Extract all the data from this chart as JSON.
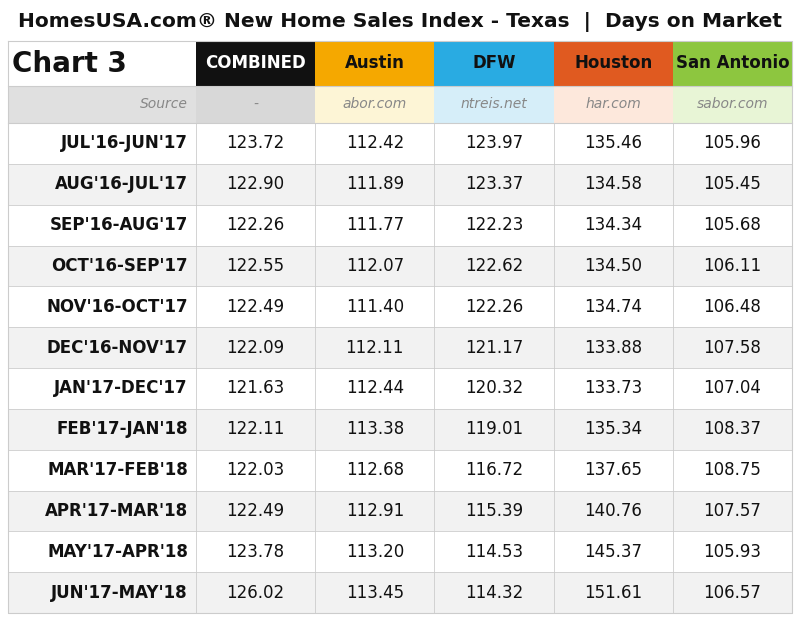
{
  "title": "HomesUSA.com® New Home Sales Index - Texas  |  Days on Market",
  "chart_label": "Chart 3",
  "columns": [
    "COMBINED",
    "Austin",
    "DFW",
    "Houston",
    "San Antonio"
  ],
  "sources": [
    "-",
    "abor.com",
    "ntreis.net",
    "har.com",
    "sabor.com"
  ],
  "col_header_colors": [
    "#111111",
    "#f5a800",
    "#29abe2",
    "#e05a20",
    "#8dc63f"
  ],
  "col_header_text_colors": [
    "#ffffff",
    "#111111",
    "#111111",
    "#111111",
    "#111111"
  ],
  "source_bg_colors": [
    "#d8d8d8",
    "#fdf5d6",
    "#d6eef9",
    "#fde8dc",
    "#e8f5d6"
  ],
  "rows": [
    {
      "label": "JUL'16-JUN'17",
      "values": [
        123.72,
        112.42,
        123.97,
        135.46,
        105.96
      ]
    },
    {
      "label": "AUG'16-JUL'17",
      "values": [
        122.9,
        111.89,
        123.37,
        134.58,
        105.45
      ]
    },
    {
      "label": "SEP'16-AUG'17",
      "values": [
        122.26,
        111.77,
        122.23,
        134.34,
        105.68
      ]
    },
    {
      "label": "OCT'16-SEP'17",
      "values": [
        122.55,
        112.07,
        122.62,
        134.5,
        106.11
      ]
    },
    {
      "label": "NOV'16-OCT'17",
      "values": [
        122.49,
        111.4,
        122.26,
        134.74,
        106.48
      ]
    },
    {
      "label": "DEC'16-NOV'17",
      "values": [
        122.09,
        112.11,
        121.17,
        133.88,
        107.58
      ]
    },
    {
      "label": "JAN'17-DEC'17",
      "values": [
        121.63,
        112.44,
        120.32,
        133.73,
        107.04
      ]
    },
    {
      "label": "FEB'17-JAN'18",
      "values": [
        122.11,
        113.38,
        119.01,
        135.34,
        108.37
      ]
    },
    {
      "label": "MAR'17-FEB'18",
      "values": [
        122.03,
        112.68,
        116.72,
        137.65,
        108.75
      ]
    },
    {
      "label": "APR'17-MAR'18",
      "values": [
        122.49,
        112.91,
        115.39,
        140.76,
        107.57
      ]
    },
    {
      "label": "MAY'17-APR'18",
      "values": [
        123.78,
        113.2,
        114.53,
        145.37,
        105.93
      ]
    },
    {
      "label": "JUN'17-MAY'18",
      "values": [
        126.02,
        113.45,
        114.32,
        151.61,
        106.57
      ]
    }
  ],
  "row_bg_colors": [
    "#ffffff",
    "#f2f2f2"
  ],
  "background_color": "#ffffff",
  "grid_color": "#cccccc",
  "title_fontsize": 14.5,
  "header_fontsize": 12,
  "source_fontsize": 10,
  "data_fontsize": 12,
  "label_fontsize": 12,
  "chart3_fontsize": 20
}
